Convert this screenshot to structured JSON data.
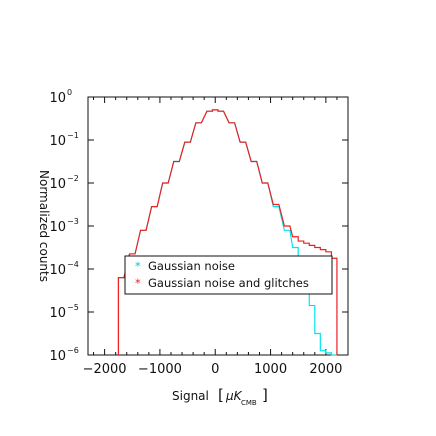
{
  "chart_data": {
    "type": "line",
    "title": "",
    "xlabel": "Signal",
    "xlabel_unit": "μK",
    "xlabel_unit_sub": "CMB",
    "ylabel": "Normalized counts",
    "xlim": [
      -2300,
      2400
    ],
    "ylim_exponent": [
      -6,
      0
    ],
    "y_scale": "log",
    "x_ticks": [
      -2000,
      -1000,
      0,
      1000,
      2000
    ],
    "x_tick_labels": [
      "−2000",
      "−1000",
      "0",
      "1000",
      "2000"
    ],
    "y_ticks": [
      0,
      -1,
      -2,
      -3,
      -4,
      -5,
      -6
    ],
    "y_tick_labels": [
      "10",
      "10",
      "10",
      "10",
      "10",
      "10",
      "10"
    ],
    "y_tick_exponents": [
      "0",
      "−1",
      "−2",
      "−3",
      "−4",
      "−5",
      "−6"
    ],
    "legend_position": "bottom-right",
    "series": [
      {
        "name": "Gaussian noise",
        "color": "#00e5ee",
        "marker": "*",
        "x": [
          -1700,
          -1500,
          -1300,
          -1100,
          -900,
          -700,
          -500,
          -300,
          -100,
          0,
          100,
          300,
          500,
          700,
          900,
          1100,
          1300,
          1450,
          1550,
          1650,
          1750,
          1850,
          1950,
          2050,
          2150
        ],
        "y": [
          -4.2,
          -3.65,
          -3.1,
          -2.55,
          -2.0,
          -1.5,
          -1.05,
          -0.6,
          -0.33,
          -0.3,
          -0.33,
          -0.6,
          -1.05,
          -1.5,
          -2.0,
          -2.55,
          -3.1,
          -3.5,
          -3.85,
          -4.3,
          -4.85,
          -5.5,
          -5.9,
          -5.95,
          -6.0
        ]
      },
      {
        "name": "Gaussian noise and glitches",
        "color": "#ee2020",
        "marker": "*",
        "x": [
          -1700,
          -1500,
          -1300,
          -1100,
          -900,
          -700,
          -500,
          -300,
          -100,
          0,
          100,
          300,
          500,
          700,
          900,
          1100,
          1300,
          1450,
          1550,
          1650,
          1750,
          1850,
          1950,
          2050,
          2150
        ],
        "y": [
          -4.2,
          -3.65,
          -3.1,
          -2.55,
          -2.0,
          -1.5,
          -1.05,
          -0.6,
          -0.33,
          -0.3,
          -0.33,
          -0.6,
          -1.05,
          -1.5,
          -2.0,
          -2.5,
          -3.0,
          -3.25,
          -3.35,
          -3.4,
          -3.45,
          -3.5,
          -3.55,
          -3.6,
          -3.75
        ]
      }
    ]
  }
}
